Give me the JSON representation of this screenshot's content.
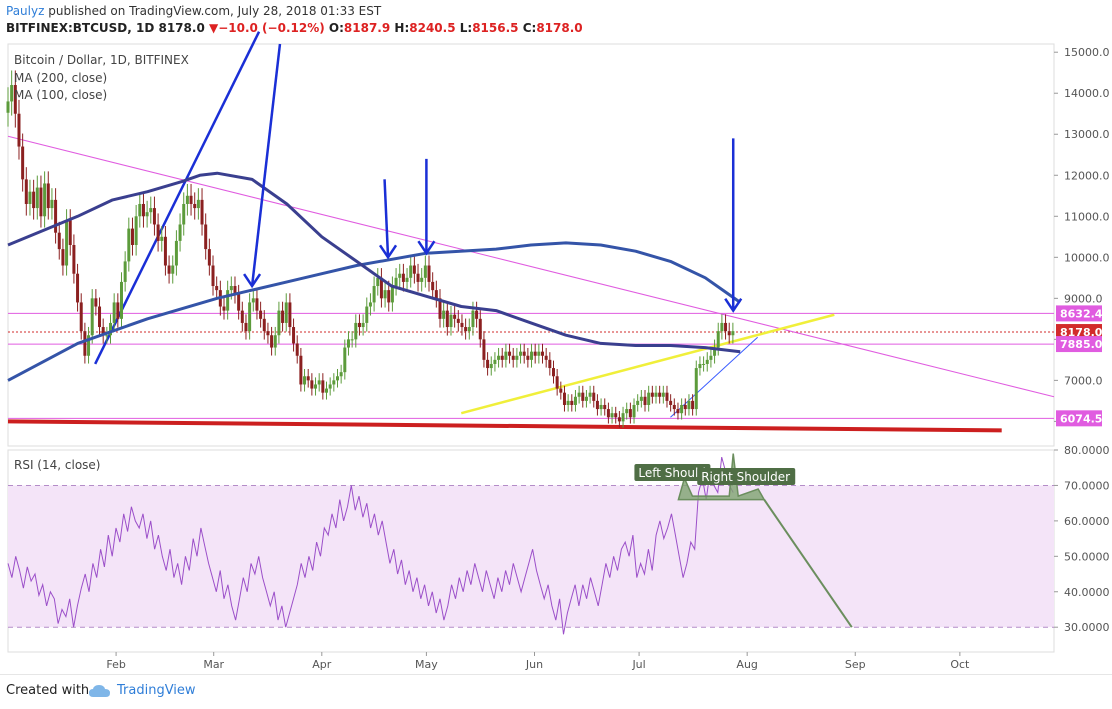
{
  "header": {
    "author": "Paulyz",
    "published": "published on TradingView.com, July 28, 2018 01:33 EST",
    "symbol": "BITFINEX:BTCUSD, 1D",
    "last": "8178.0",
    "change": "−10.0 (−0.12%)",
    "open_label": "O:",
    "open": "8187.9",
    "high_label": "H:",
    "high": "8240.5",
    "low_label": "L:",
    "low": "8156.5",
    "close_label": "C:",
    "close": "8178.0"
  },
  "footer": {
    "created_with": "Created with",
    "brand": "TradingView"
  },
  "colors": {
    "up": "#5c9b3b",
    "down": "#8b2020",
    "ma200": "#3454a8",
    "ma100": "#3a3f8f",
    "trend_pink": "#e05ce0",
    "support_red": "#cc1f1f",
    "arrow_blue": "#1a2fd6",
    "yellow": "#f0ef3a",
    "rsi_line": "#9b4fc9",
    "rsi_band": "#f4e4f8",
    "pattern_green": "#6b8e5e"
  },
  "chart_data": [
    {
      "type": "candlestick",
      "title": "Bitcoin / Dollar, 1D, BITFINEX",
      "indicators": [
        "MA (200, close)",
        "MA (100, close)"
      ],
      "ylim": [
        5400,
        15200
      ],
      "y_ticks": [
        6000,
        7000,
        8000,
        9000,
        10000,
        11000,
        12000,
        13000,
        14000,
        15000
      ],
      "y_tick_labels": [
        "6000.0",
        "7000.0",
        "8000.0",
        "9000.0",
        "10000.0",
        "11000.0",
        "12000.0",
        "13000.0",
        "14000.0",
        "15000.0"
      ],
      "x_labels": [
        "Feb",
        "Mar",
        "Apr",
        "May",
        "Jun",
        "Jul",
        "Aug",
        "Sep",
        "Oct"
      ],
      "x_label_days": [
        31,
        59,
        90,
        120,
        151,
        181,
        212,
        243,
        273
      ],
      "x_range_days": [
        0,
        300
      ],
      "price_tags": [
        {
          "value": 8632.4,
          "label": "8632.4",
          "color": "#e05ce0"
        },
        {
          "value": 8178.0,
          "label": "8178.0",
          "color": "#d22b2b"
        },
        {
          "value": 7885.0,
          "label": "7885.0",
          "color": "#e05ce0"
        },
        {
          "value": 6074.5,
          "label": "6074.5",
          "color": "#e05ce0"
        }
      ],
      "closes": [
        13800,
        14200,
        13500,
        12700,
        11900,
        11300,
        11600,
        11200,
        11700,
        11000,
        11800,
        11200,
        11400,
        10600,
        10200,
        9800,
        10900,
        10300,
        9600,
        8900,
        8200,
        7600,
        8100,
        9000,
        8800,
        8300,
        8100,
        8100,
        8400,
        8900,
        8500,
        9400,
        9900,
        10700,
        10300,
        11000,
        11300,
        11000,
        11100,
        11200,
        10800,
        10400,
        10500,
        9800,
        9600,
        9800,
        10400,
        10800,
        11300,
        11500,
        11300,
        11200,
        11400,
        10800,
        10200,
        9800,
        9300,
        9200,
        8800,
        8700,
        9200,
        9300,
        9100,
        8700,
        8400,
        8200,
        8900,
        9000,
        8700,
        8500,
        8200,
        8100,
        7800,
        8100,
        8700,
        8400,
        8900,
        8300,
        7900,
        7600,
        6900,
        7100,
        7000,
        6800,
        6900,
        7000,
        6700,
        6800,
        6900,
        7000,
        7100,
        7200,
        7800,
        8000,
        8000,
        8400,
        8300,
        8400,
        8800,
        8900,
        9300,
        9500,
        9000,
        9200,
        8900,
        9300,
        9500,
        9600,
        9400,
        9500,
        9800,
        9600,
        9400,
        9500,
        9800,
        9400,
        9200,
        9000,
        8500,
        8700,
        8300,
        8600,
        8500,
        8400,
        8300,
        8200,
        8300,
        8700,
        8500,
        8000,
        7500,
        7300,
        7400,
        7500,
        7600,
        7500,
        7700,
        7600,
        7500,
        7600,
        7700,
        7600,
        7500,
        7700,
        7600,
        7700,
        7600,
        7500,
        7300,
        7100,
        6800,
        6700,
        6400,
        6500,
        6400,
        6600,
        6700,
        6500,
        6600,
        6700,
        6500,
        6300,
        6400,
        6300,
        6100,
        6200,
        6100,
        6000,
        6200,
        6300,
        6100,
        6400,
        6500,
        6600,
        6400,
        6700,
        6600,
        6700,
        6600,
        6700,
        6500,
        6400,
        6300,
        6200,
        6400,
        6300,
        6500,
        6300,
        7300,
        7400,
        7400,
        7500,
        7600,
        7800,
        8200,
        8400,
        8200,
        8100,
        8200
      ],
      "ma200_days": [
        0,
        20,
        40,
        60,
        70,
        80,
        90,
        100,
        120,
        140,
        150,
        160,
        170,
        180,
        190,
        200,
        205,
        210
      ],
      "ma200": [
        7000,
        7900,
        8500,
        9000,
        9200,
        9400,
        9600,
        9800,
        10100,
        10200,
        10300,
        10350,
        10300,
        10150,
        9900,
        9500,
        9200,
        8900
      ],
      "ma100_days": [
        0,
        20,
        30,
        40,
        50,
        55,
        60,
        70,
        80,
        90,
        100,
        110,
        120,
        130,
        140,
        150,
        160,
        170,
        180,
        190,
        200,
        210
      ],
      "ma100": [
        10300,
        11000,
        11400,
        11600,
        11850,
        12000,
        12050,
        11900,
        11300,
        10500,
        9900,
        9300,
        9050,
        8800,
        8700,
        8400,
        8100,
        7900,
        7850,
        7850,
        7800,
        7700
      ],
      "annotation_arrows": 6
    },
    {
      "type": "line",
      "title": "RSI (14, close)",
      "ylim": [
        23,
        80
      ],
      "y_ticks": [
        30,
        40,
        50,
        60,
        70,
        80
      ],
      "y_tick_labels": [
        "30.0000",
        "40.0000",
        "50.0000",
        "60.0000",
        "70.0000",
        "80.0000"
      ],
      "overbought": 70,
      "oversold": 30,
      "values": [
        48,
        44,
        50,
        46,
        41,
        47,
        43,
        45,
        39,
        42,
        36,
        40,
        38,
        31,
        35,
        33,
        38,
        30,
        36,
        41,
        45,
        40,
        48,
        44,
        52,
        47,
        56,
        50,
        58,
        54,
        62,
        57,
        64,
        60,
        58,
        62,
        55,
        60,
        52,
        56,
        50,
        46,
        52,
        44,
        48,
        42,
        50,
        46,
        55,
        50,
        58,
        53,
        48,
        44,
        40,
        46,
        38,
        42,
        36,
        32,
        38,
        44,
        40,
        48,
        45,
        50,
        44,
        40,
        36,
        40,
        32,
        36,
        30,
        34,
        38,
        42,
        48,
        44,
        50,
        46,
        54,
        50,
        58,
        56,
        62,
        58,
        66,
        60,
        64,
        70,
        63,
        67,
        61,
        65,
        58,
        62,
        56,
        60,
        54,
        48,
        52,
        45,
        49,
        42,
        46,
        40,
        44,
        38,
        42,
        36,
        40,
        34,
        38,
        32,
        36,
        42,
        38,
        44,
        40,
        46,
        42,
        48,
        44,
        40,
        46,
        42,
        38,
        44,
        40,
        46,
        42,
        48,
        44,
        40,
        44,
        48,
        52,
        46,
        42,
        38,
        42,
        36,
        32,
        38,
        28,
        34,
        38,
        42,
        36,
        42,
        38,
        44,
        40,
        36,
        42,
        48,
        44,
        50,
        46,
        52,
        54,
        50,
        56,
        44,
        48,
        45,
        52,
        46,
        56,
        60,
        55,
        58,
        62,
        56,
        50,
        44,
        48,
        54,
        52,
        68,
        72,
        66,
        74,
        70,
        68,
        78,
        74,
        70,
        68
      ],
      "pattern_labels": [
        "Left Shoulder",
        "Right Shoulder"
      ]
    }
  ]
}
